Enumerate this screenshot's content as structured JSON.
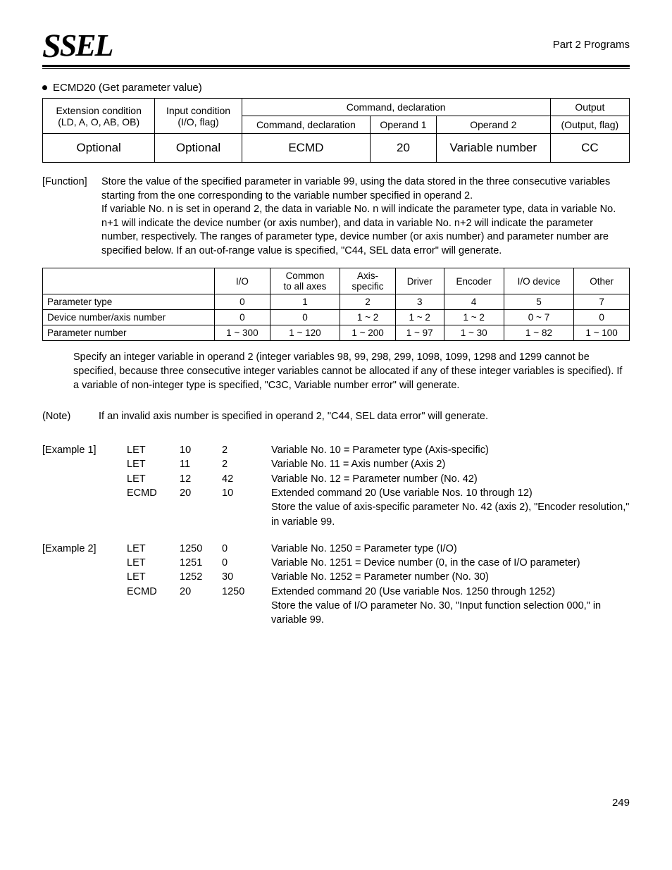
{
  "header": {
    "logo_text": "SEL",
    "part_label": "Part 2 Programs"
  },
  "title": {
    "bullet_text": "ECMD20 (Get parameter value)"
  },
  "cmd_table": {
    "headers": {
      "ext_cond_1": "Extension condition",
      "ext_cond_2": "(LD, A, O, AB, OB)",
      "input_cond_1": "Input condition",
      "input_cond_2": "(I/O, flag)",
      "cmd_decl_span": "Command, declaration",
      "cmd_decl": "Command, declaration",
      "op1": "Operand 1",
      "op2": "Operand 2",
      "output_1": "Output",
      "output_2": "(Output, flag)"
    },
    "row": {
      "ext": "Optional",
      "input": "Optional",
      "cmd": "ECMD",
      "o1": "20",
      "o2": "Variable number",
      "out": "CC"
    }
  },
  "function": {
    "label": "[Function]",
    "text": "Store the value of the specified parameter in variable 99, using the data stored in the three consecutive variables starting from the one corresponding to the variable number specified in operand 2.\nIf variable No. n is set in operand 2, the data in variable No. n will indicate the parameter type, data in variable No. n+1 will indicate the device number (or axis number), and data in variable No. n+2 will indicate the parameter number, respectively. The ranges of parameter type, device number (or axis number) and parameter number are specified below. If an out-of-range value is specified, \"C44, SEL data error\" will generate."
  },
  "range_table": {
    "columns": [
      "I/O",
      "Common to all axes",
      "Axis-specific",
      "Driver",
      "Encoder",
      "I/O device",
      "Other"
    ],
    "rows": [
      {
        "label": "Parameter type",
        "cells": [
          "0",
          "1",
          "2",
          "3",
          "4",
          "5",
          "7"
        ]
      },
      {
        "label": "Device number/axis number",
        "cells": [
          "0",
          "0",
          "1 ~ 2",
          "1 ~ 2",
          "1 ~ 2",
          "0 ~ 7",
          "0"
        ]
      },
      {
        "label": "Parameter number",
        "cells": [
          "1 ~ 300",
          "1 ~ 120",
          "1 ~ 200",
          "1 ~ 97",
          "1 ~ 30",
          "1 ~ 82",
          "1 ~ 100"
        ]
      }
    ]
  },
  "specify_para": "Specify an integer variable in operand 2 (integer variables 98, 99, 298, 299, 1098, 1099, 1298 and 1299 cannot be specified, because three consecutive integer variables cannot be allocated if any of these integer variables is specified). If a variable of non-integer type is specified, \"C3C, Variable number error\" will generate.",
  "note": {
    "label": "(Note)",
    "text": "If an invalid axis number is specified in operand 2, \"C44, SEL data error\" will generate."
  },
  "examples": [
    {
      "label": "[Example 1]",
      "lines": [
        {
          "cmd": "LET",
          "c1": "10",
          "c2": "2",
          "desc": "Variable No. 10 = Parameter type (Axis-specific)"
        },
        {
          "cmd": "LET",
          "c1": "11",
          "c2": "2",
          "desc": "Variable No. 11 = Axis number (Axis 2)"
        },
        {
          "cmd": "LET",
          "c1": "12",
          "c2": "42",
          "desc": "Variable No. 12 = Parameter number (No. 42)"
        },
        {
          "cmd": "ECMD",
          "c1": "20",
          "c2": "10",
          "desc": "Extended command 20 (Use variable Nos. 10 through 12)\nStore the value of axis-specific parameter No. 42 (axis 2), \"Encoder resolution,\" in variable 99."
        }
      ]
    },
    {
      "label": "[Example 2]",
      "lines": [
        {
          "cmd": "LET",
          "c1": "1250",
          "c2": "0",
          "desc": "Variable No. 1250 = Parameter type (I/O)"
        },
        {
          "cmd": "LET",
          "c1": "1251",
          "c2": "0",
          "desc": "Variable No. 1251 = Device number (0, in the case of I/O parameter)"
        },
        {
          "cmd": "LET",
          "c1": "1252",
          "c2": "30",
          "desc": "Variable No. 1252 = Parameter number (No. 30)"
        },
        {
          "cmd": "ECMD",
          "c1": "20",
          "c2": "1250",
          "desc": "Extended command 20 (Use variable Nos. 1250 through 1252)\nStore the value of I/O parameter No. 30, \"Input function selection 000,\" in variable 99."
        }
      ]
    }
  ],
  "page_number": "249"
}
